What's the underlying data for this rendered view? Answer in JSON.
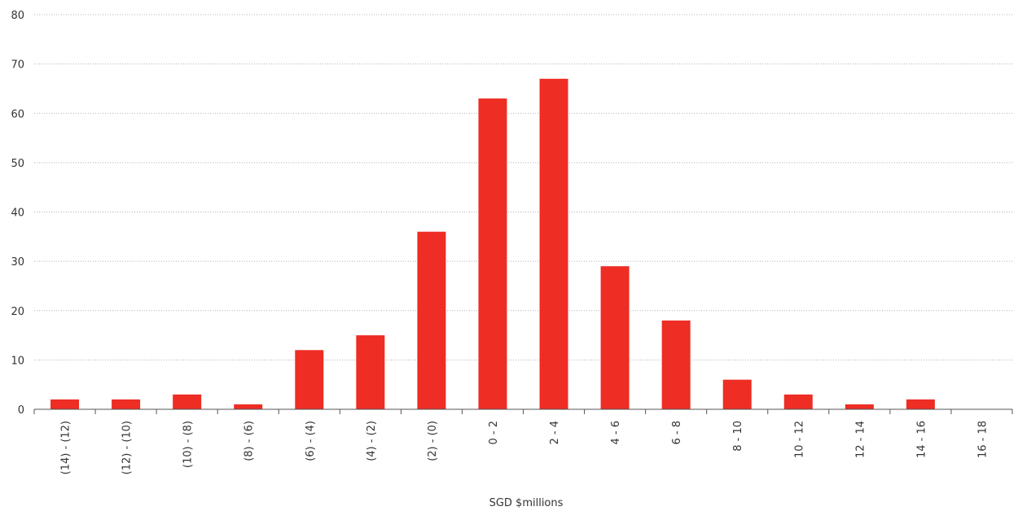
{
  "chart_data": {
    "type": "bar",
    "categories": [
      "(14) - (12)",
      "(12) - (10)",
      "(10) - (8)",
      "(8) - (6)",
      "(6) - (4)",
      "(4) - (2)",
      "(2) - (0)",
      "0 - 2",
      "2 - 4",
      "4 - 6",
      "6 - 8",
      "8 - 10",
      "10 - 12",
      "12 - 14",
      "14 - 16",
      "16 - 18"
    ],
    "values": [
      2,
      2,
      3,
      1,
      12,
      15,
      36,
      63,
      67,
      29,
      18,
      6,
      3,
      1,
      2,
      0
    ],
    "title": "",
    "xlabel": "SGD $millions",
    "ylabel": "",
    "ylim": [
      0,
      80
    ],
    "yticks": [
      0,
      10,
      20,
      30,
      40,
      50,
      60,
      70,
      80
    ],
    "grid": true,
    "bar_color": "#ee2d24"
  }
}
